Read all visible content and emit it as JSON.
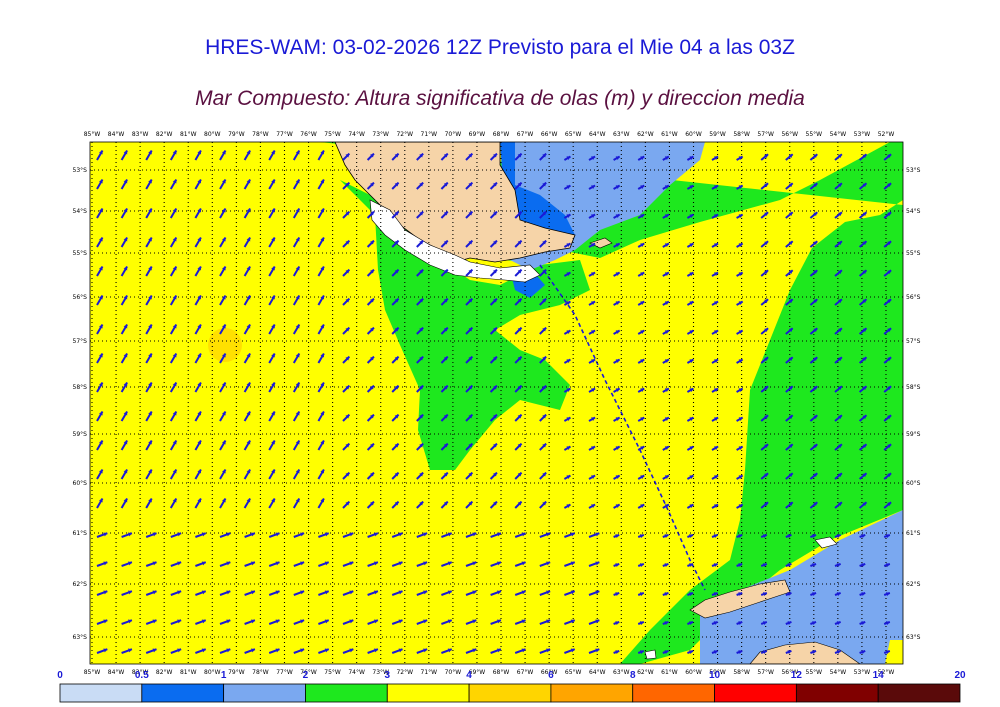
{
  "title": "HRES-WAM: 03-02-2026 12Z Previsto para el Mie 04 a las 03Z",
  "subtitle": "Mar Compuesto: Altura significativa de olas (m) y direccion media",
  "longitude_labels": [
    "85°W",
    "84°W",
    "83°W",
    "82°W",
    "81°W",
    "80°W",
    "79°W",
    "78°W",
    "77°W",
    "76°W",
    "75°W",
    "74°W",
    "73°W",
    "72°W",
    "71°W",
    "70°W",
    "69°W",
    "68°W",
    "67°W",
    "66°W",
    "65°W",
    "64°W",
    "63°W",
    "62°W",
    "61°W",
    "60°W",
    "59°W",
    "58°W",
    "57°W",
    "56°W",
    "55°W",
    "54°W",
    "53°W",
    "52°W"
  ],
  "latitude_labels": [
    "53°S",
    "54°S",
    "55°S",
    "56°S",
    "57°S",
    "58°S",
    "59°S",
    "60°S",
    "61°S",
    "62°S",
    "63°S"
  ],
  "colorbar": {
    "labels": [
      "0",
      "0.5",
      "1",
      "2",
      "3",
      "4",
      "6",
      "8",
      "10",
      "12",
      "14",
      "20"
    ],
    "colors": [
      "#c9dcf5",
      "#0a6cf0",
      "#7aa8f0",
      "#1ee81e",
      "#ffff00",
      "#ffd500",
      "#ffa500",
      "#ff6600",
      "#ff0000",
      "#800000",
      "#5a0a0a",
      "#333333"
    ]
  },
  "colors": {
    "title": "#1a1ad6",
    "subtitle": "#5a1040",
    "arrow": "#1a1ad6",
    "land": "#f6d4a8",
    "sea_yellow": "#ffff00",
    "sea_green": "#1ee81e",
    "sea_lightblue": "#7aa8f0",
    "sea_blue": "#0a6cf0"
  }
}
